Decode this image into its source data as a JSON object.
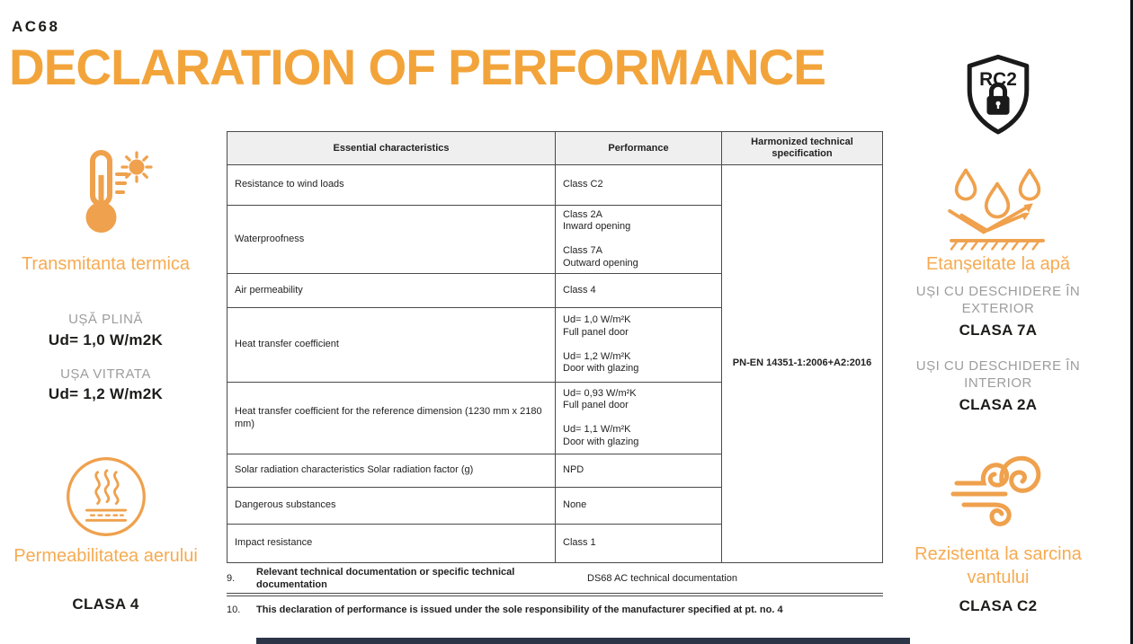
{
  "page": {
    "code": "AC68",
    "title": "DECLARATION OF PERFORMANCE"
  },
  "colors": {
    "accent_orange": "#F2A43B",
    "accent_orange_light": "#F6AB52",
    "icon_orange": "#EFA14D",
    "text_dark": "#1C1C1A",
    "text_gray": "#9D9D9D",
    "table_border": "#4A4A4A",
    "header_bg": "#EFEFEF"
  },
  "left_sidebar": {
    "thermal": {
      "icon": "thermometer-sun",
      "title": "Transmitanta termica",
      "items": [
        {
          "label": "UȘĂ PLINĂ",
          "value": "Ud= 1,0 W/m2K"
        },
        {
          "label": "UȘA VITRATA",
          "value": "Ud= 1,2 W/m2K"
        }
      ]
    },
    "air": {
      "icon": "air-permeability",
      "title": "Permeabilitatea aerului",
      "value": "CLASA 4"
    }
  },
  "right_sidebar": {
    "security_badge": {
      "icon": "rc2-shield-lock",
      "label": "RC2"
    },
    "water": {
      "icon": "water-drops-bounce",
      "title": "Etanșeitate la apă",
      "items": [
        {
          "label": "UȘI CU DESCHIDERE ÎN EXTERIOR",
          "value": "CLASA 7A"
        },
        {
          "label": "UȘI CU DESCHIDERE ÎN INTERIOR",
          "value": "CLASA 2A"
        }
      ]
    },
    "wind": {
      "icon": "wind-swirl",
      "title": "Rezistenta la sarcina vantului",
      "value": "CLASA C2"
    }
  },
  "table": {
    "headers": [
      "Essential characteristics",
      "Performance",
      "Harmonized technical specification"
    ],
    "rows": [
      {
        "characteristic": "Resistance to wind loads",
        "performance": [
          "Class C2"
        ]
      },
      {
        "characteristic": "Waterproofness",
        "performance": [
          "Class 2A",
          "Inward opening",
          "",
          "Class 7A",
          "Outward opening"
        ]
      },
      {
        "characteristic": "Air permeability",
        "performance": [
          "Class 4"
        ]
      },
      {
        "characteristic": "Heat transfer coefficient",
        "performance": [
          "Ud= 1,0 W/m²K",
          "Full panel door",
          "",
          "Ud= 1,2 W/m²K",
          "Door with glazing"
        ]
      },
      {
        "characteristic": "Heat transfer coefficient for the reference dimension (1230 mm x 2180 mm)",
        "performance": [
          "Ud= 0,93 W/m²K",
          "Full panel door",
          "",
          "Ud= 1,1 W/m²K",
          "Door with glazing"
        ]
      },
      {
        "characteristic": "Solar radiation characteristics Solar radiation factor (g)",
        "performance": [
          "NPD"
        ]
      },
      {
        "characteristic": "Dangerous substances",
        "performance": [
          "None"
        ]
      },
      {
        "characteristic": "Impact resistance",
        "performance": [
          "Class 1"
        ]
      }
    ],
    "specification": "PN-EN 14351-1:2006+A2:2016"
  },
  "notes": [
    {
      "number": "9.",
      "text": "Relevant technical documentation or specific technical documentation",
      "value": "DS68 AC technical documentation"
    },
    {
      "number": "10.",
      "text": "This declaration of performance is issued under the sole responsibility of the manufacturer specified at pt. no. 4"
    }
  ]
}
